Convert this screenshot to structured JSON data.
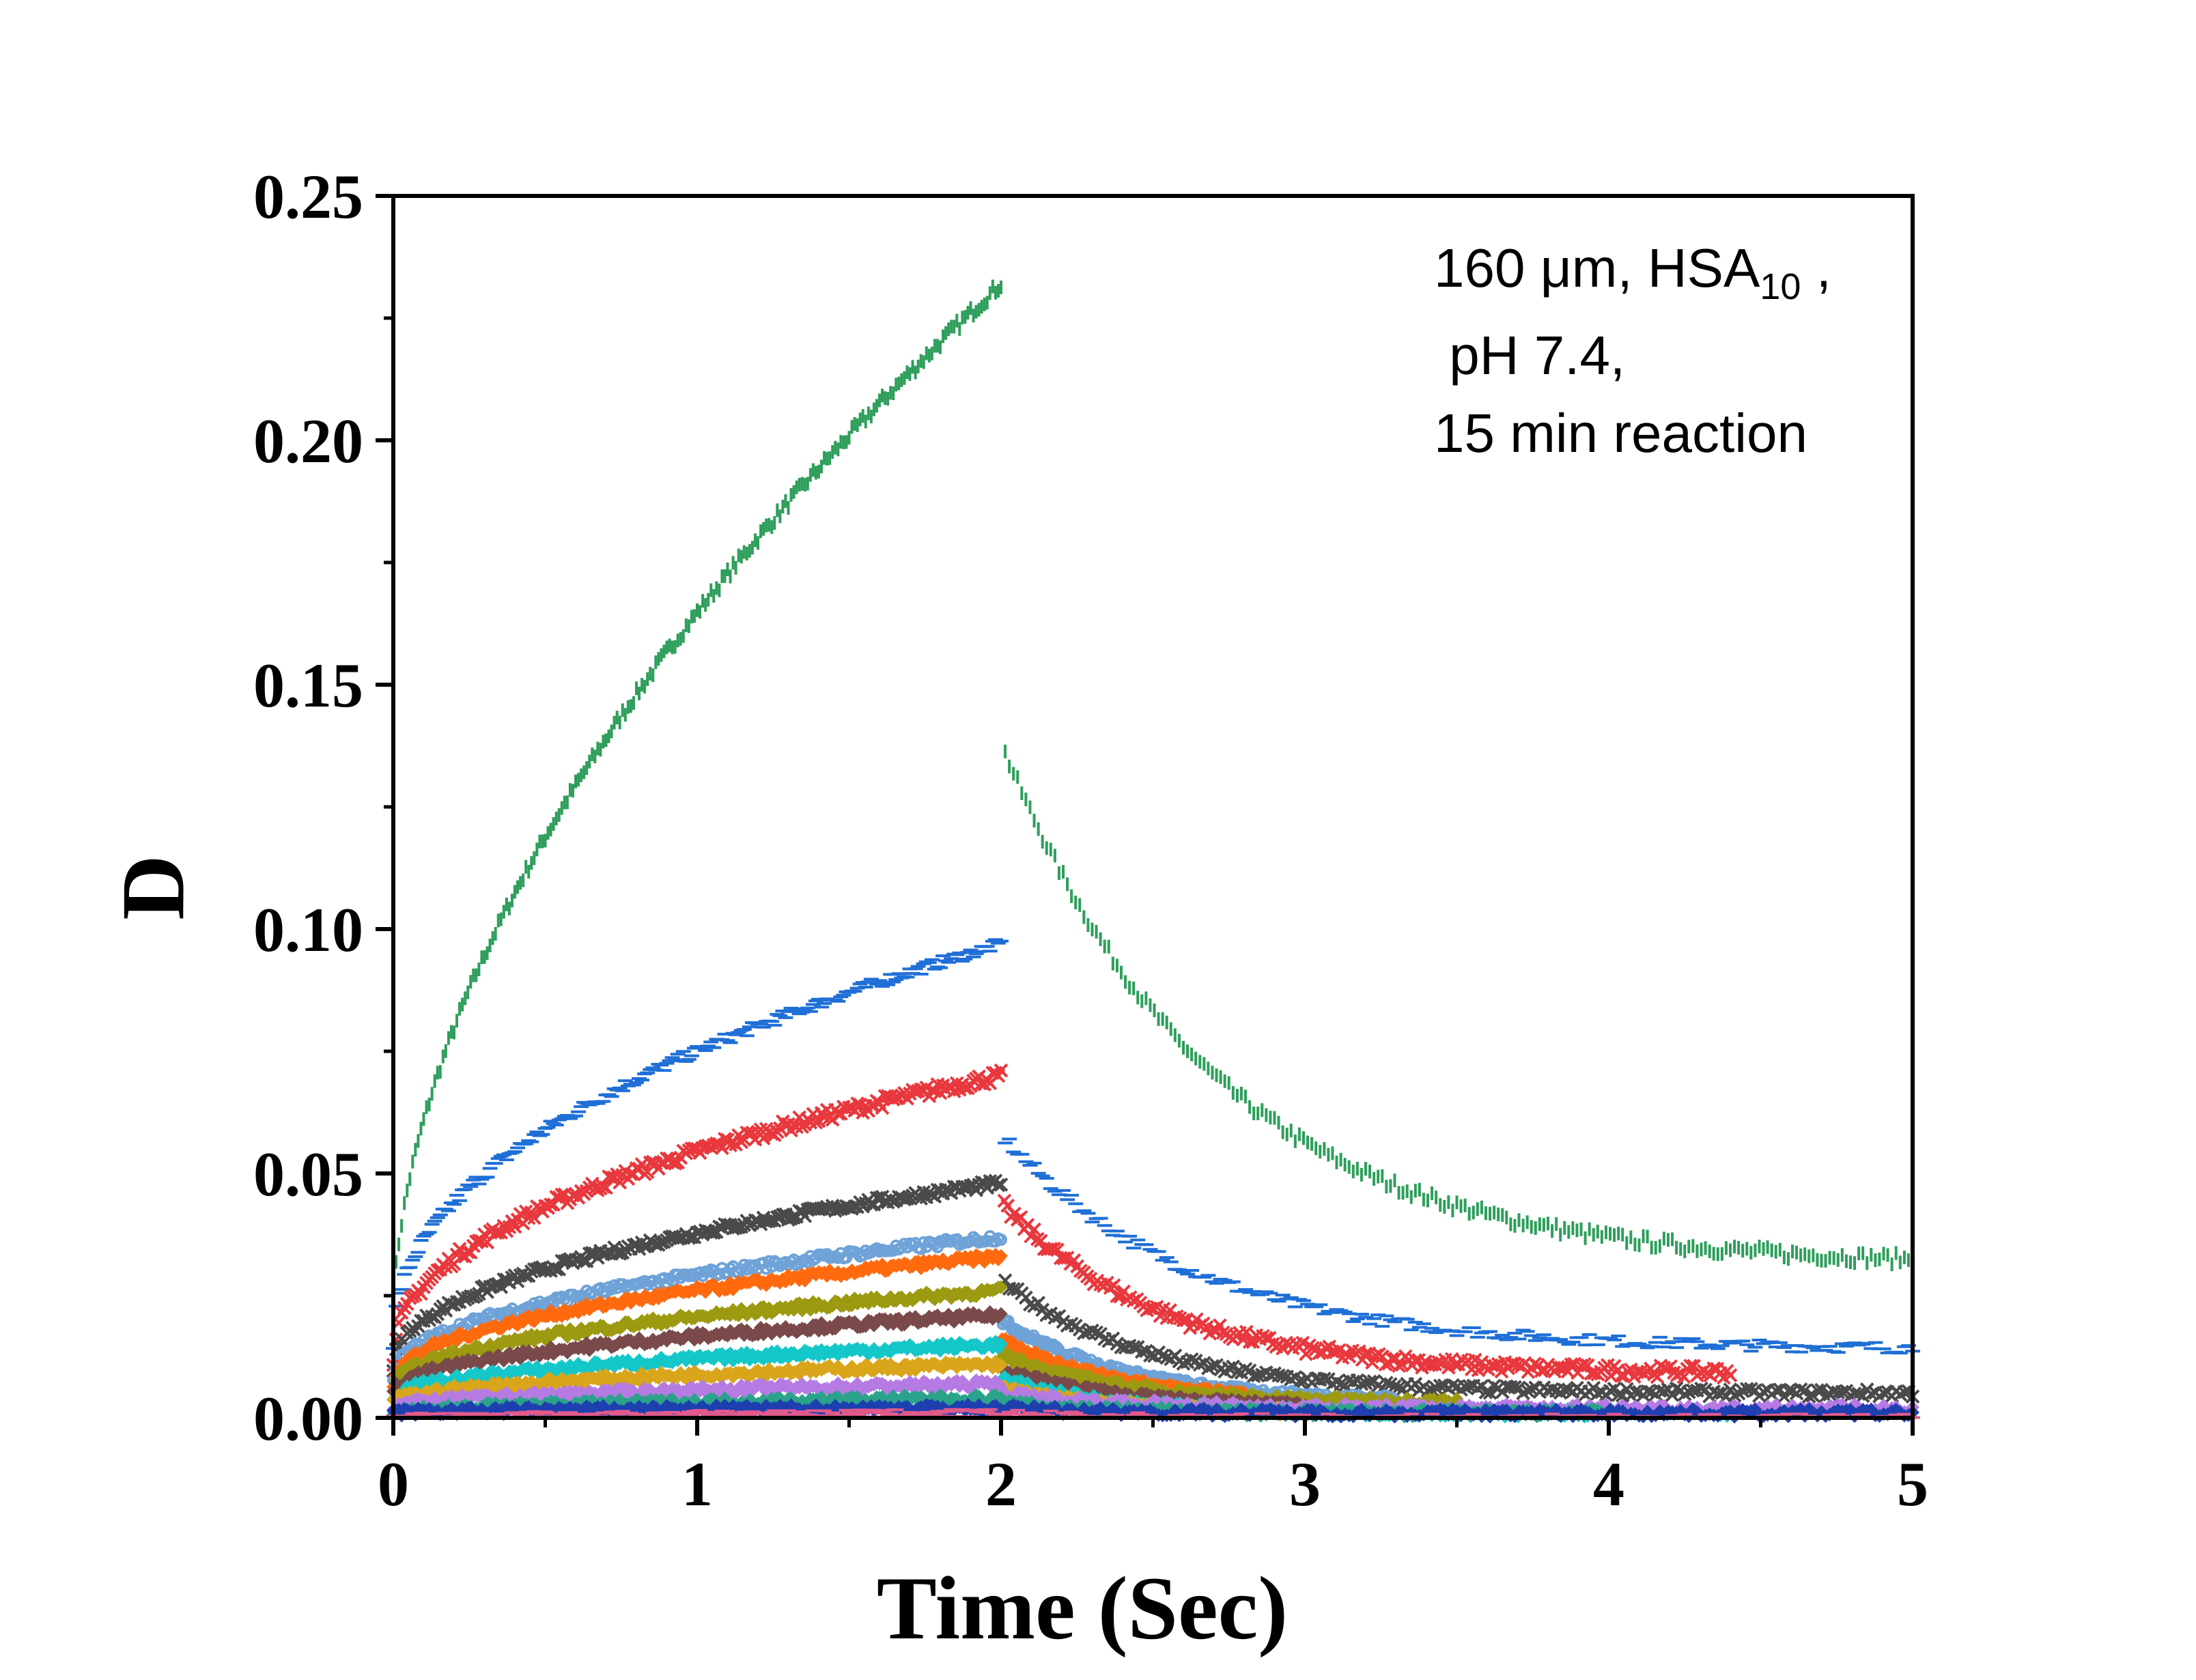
{
  "chart_data": {
    "type": "line",
    "title": "",
    "xlabel": "Time (Sec)",
    "ylabel": "D",
    "xlim": [
      0,
      5
    ],
    "ylim": [
      0,
      0.25
    ],
    "x_ticks": [
      "0",
      "1",
      "2",
      "3",
      "4",
      "5"
    ],
    "y_ticks": [
      "0.00",
      "0.05",
      "0.10",
      "0.15",
      "0.20",
      "0.25"
    ],
    "grid": false,
    "annotation": {
      "line1_prefix": "160 μm, HSA",
      "line1_sub": "10",
      "line1_suffix": " ,",
      "line2": " pH 7.4,",
      "line3": "15 min reaction"
    },
    "pulse_end": 2.0,
    "series": [
      {
        "name": "green",
        "color": "#2e9e5b",
        "marker": "|",
        "peak": 0.232,
        "rise_shape": 0.55,
        "start": 0.02,
        "spike": 0.138,
        "tail_end": 0.031,
        "decay_rate": 0.9,
        "x_end": 5.0
      },
      {
        "name": "blue",
        "color": "#1f6fd6",
        "marker": "-",
        "peak": 0.097,
        "rise_shape": 0.45,
        "start": 0.015,
        "spike": 0.058,
        "tail_end": 0.014,
        "decay_rate": 1.0,
        "x_end": 5.0
      },
      {
        "name": "red",
        "color": "#e8383d",
        "marker": "x",
        "peak": 0.07,
        "rise_shape": 0.45,
        "start": 0.012,
        "spike": 0.044,
        "tail_end": 0.009,
        "decay_rate": 1.2,
        "x_end": 4.4
      },
      {
        "name": "dark-gray",
        "color": "#4a4a4a",
        "marker": "x",
        "peak": 0.048,
        "rise_shape": 0.45,
        "start": 0.01,
        "spike": 0.028,
        "tail_end": 0.005,
        "decay_rate": 1.3,
        "x_end": 5.0
      },
      {
        "name": "light-blue",
        "color": "#6fa3d8",
        "marker": "o",
        "peak": 0.037,
        "rise_shape": 0.45,
        "start": 0.008,
        "spike": 0.02,
        "tail_end": 0.003,
        "decay_rate": 1.5,
        "x_end": 3.3
      },
      {
        "name": "orange",
        "color": "#ff6a0f",
        "marker": "diamond",
        "peak": 0.033,
        "rise_shape": 0.45,
        "start": 0.007,
        "spike": 0.016,
        "tail_end": 0.003,
        "decay_rate": 1.6,
        "x_end": 2.8
      },
      {
        "name": "olive",
        "color": "#9c9a10",
        "marker": "diamond",
        "peak": 0.026,
        "rise_shape": 0.45,
        "start": 0.006,
        "spike": 0.013,
        "tail_end": 0.003,
        "decay_rate": 1.6,
        "x_end": 3.5
      },
      {
        "name": "brown",
        "color": "#7a4a4a",
        "marker": "diamond",
        "peak": 0.021,
        "rise_shape": 0.45,
        "start": 0.005,
        "spike": 0.01,
        "tail_end": 0.002,
        "decay_rate": 1.7,
        "x_end": 3.0
      },
      {
        "name": "cyan",
        "color": "#14c7c9",
        "marker": "diamond",
        "peak": 0.015,
        "rise_shape": 0.45,
        "start": 0.004,
        "spike": 0.008,
        "tail_end": 0.001,
        "decay_rate": 1.8,
        "x_end": 4.4
      },
      {
        "name": "gold",
        "color": "#d9a51a",
        "marker": "diamond",
        "peak": 0.011,
        "rise_shape": 0.45,
        "start": 0.003,
        "spike": 0.006,
        "tail_end": 0.001,
        "decay_rate": 1.8,
        "x_end": 3.0
      },
      {
        "name": "purple",
        "color": "#b57be3",
        "marker": "diamond",
        "peak": 0.007,
        "rise_shape": 0.45,
        "start": 0.002,
        "spike": 0.005,
        "tail_end": 0.002,
        "decay_rate": 1.5,
        "x_end": 5.0
      },
      {
        "name": "teal",
        "color": "#2aa38a",
        "marker": "diamond",
        "peak": 0.004,
        "rise_shape": 0.45,
        "start": 0.001,
        "spike": 0.003,
        "tail_end": 0.001,
        "decay_rate": 1.8,
        "x_end": 4.0
      },
      {
        "name": "navy",
        "color": "#1d3fb0",
        "marker": "diamond",
        "peak": 0.002,
        "rise_shape": 0.45,
        "start": 0.001,
        "spike": 0.002,
        "tail_end": 0.001,
        "decay_rate": 1.8,
        "x_end": 5.0
      },
      {
        "name": "rose",
        "color": "#e05a8a",
        "marker": "-",
        "peak": 0.001,
        "rise_shape": 0.45,
        "start": 0.0,
        "spike": 0.001,
        "tail_end": 0.0,
        "decay_rate": 1.8,
        "x_end": 5.0
      }
    ]
  }
}
